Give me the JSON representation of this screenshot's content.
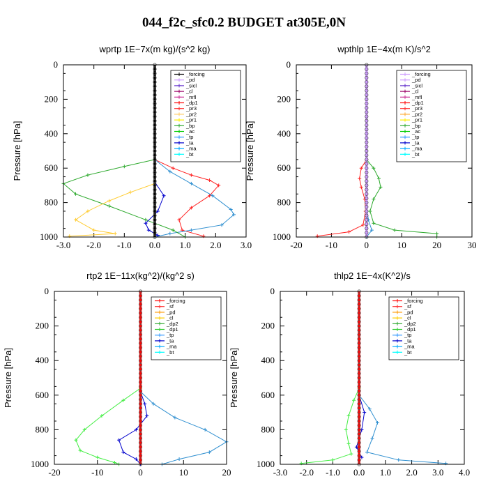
{
  "title": "044_f2c_sfc0.2  BUDGET at305E,0N",
  "chart_data": [
    {
      "type": "line",
      "title": "wprtp  1E−7x(m kg)/(s^2 kg)",
      "ylabel": "Pressure [hPa]",
      "xlim": [
        -3.0,
        3.0
      ],
      "ylim": [
        1000,
        0
      ],
      "xticks": [
        "-3.0",
        "-2.0",
        "-1.0",
        "0.0",
        "1.0",
        "2.0",
        "3.0"
      ],
      "yticks": [
        "0",
        "200",
        "400",
        "600",
        "800",
        "1000"
      ],
      "legend": [
        "_forcing",
        "_pd",
        "_sicl",
        "_cl",
        "_mfl",
        "_dp1",
        "_pr3",
        "_pr2",
        "_pr1",
        "_bp",
        "_ac",
        "_tp",
        "_ta",
        "_ma",
        "_bt"
      ],
      "legend_colors": [
        "#000000",
        "#cc99ff",
        "#6633cc",
        "#990066",
        "#cc3399",
        "#ff0000",
        "#ff3333",
        "#ffcc66",
        "#ffee00",
        "#33aa33",
        "#00cc00",
        "#3399ff",
        "#0000cc",
        "#00aaff",
        "#00ffff"
      ],
      "series": [
        {
          "name": "_dp1",
          "color": "#ff2222",
          "points": [
            [
              0.0,
              550
            ],
            [
              0.6,
              600
            ],
            [
              1.2,
              640
            ],
            [
              1.8,
              670
            ],
            [
              2.1,
              700
            ],
            [
              1.8,
              760
            ],
            [
              1.2,
              830
            ],
            [
              0.8,
              900
            ],
            [
              0.9,
              960
            ],
            [
              1.6,
              995
            ]
          ]
        },
        {
          "name": "_tp",
          "color": "#2f8fd0",
          "points": [
            [
              0.0,
              550
            ],
            [
              0.5,
              620
            ],
            [
              1.2,
              690
            ],
            [
              1.9,
              760
            ],
            [
              2.5,
              840
            ],
            [
              2.6,
              870
            ],
            [
              2.2,
              930
            ],
            [
              1.2,
              960
            ],
            [
              0.5,
              980
            ],
            [
              0.0,
              1000
            ]
          ]
        },
        {
          "name": "_bp",
          "color": "#2faa2f",
          "points": [
            [
              0.0,
              550
            ],
            [
              -1.0,
              590
            ],
            [
              -2.2,
              640
            ],
            [
              -3.0,
              690
            ],
            [
              -2.6,
              750
            ],
            [
              -1.5,
              820
            ],
            [
              -0.3,
              900
            ],
            [
              0.6,
              960
            ],
            [
              1.0,
              1000
            ]
          ]
        },
        {
          "name": "_pr2",
          "color": "#ffcc33",
          "points": [
            [
              0.0,
              690
            ],
            [
              -0.8,
              740
            ],
            [
              -1.5,
              790
            ],
            [
              -2.2,
              850
            ],
            [
              -2.6,
              900
            ],
            [
              -2.0,
              960
            ],
            [
              -1.3,
              980
            ],
            [
              -2.8,
              995
            ]
          ]
        },
        {
          "name": "_ta",
          "color": "#0000cc",
          "points": [
            [
              0.0,
              680
            ],
            [
              0.3,
              760
            ],
            [
              0.1,
              850
            ],
            [
              -0.3,
              920
            ],
            [
              -0.2,
              960
            ],
            [
              0.1,
              990
            ]
          ]
        },
        {
          "name": "_forcing",
          "color": "#000000",
          "points": [
            [
              0.0,
              0
            ],
            [
              0.0,
              1000
            ]
          ]
        }
      ]
    },
    {
      "type": "line",
      "title": "wpthlp  1E−4x(m K)/s^2",
      "ylabel": "Pressure [hPa]",
      "xlim": [
        -20,
        30
      ],
      "ylim": [
        1000,
        0
      ],
      "xticks": [
        "-20",
        "-10",
        "0",
        "10",
        "20",
        "30"
      ],
      "yticks": [
        "0",
        "200",
        "400",
        "600",
        "800",
        "1000"
      ],
      "legend": [
        "_forcing",
        "_pd",
        "_sicl",
        "_cl",
        "_mfl",
        "_dp1",
        "_pr3",
        "_pr2",
        "_pr1",
        "_bp",
        "_ac",
        "_tp",
        "_ta",
        "_ma",
        "_bt"
      ],
      "legend_colors": [
        "#cc99ff",
        "#cc99ff",
        "#6633cc",
        "#990066",
        "#cc3399",
        "#ff0000",
        "#ff3333",
        "#ffaa33",
        "#ffee00",
        "#33aa33",
        "#00cc00",
        "#3399ff",
        "#0000cc",
        "#00aaff",
        "#00ffff"
      ],
      "series": [
        {
          "name": "_bp",
          "color": "#2faa2f",
          "points": [
            [
              0,
              550
            ],
            [
              2,
              600
            ],
            [
              3.5,
              660
            ],
            [
              4,
              710
            ],
            [
              2,
              780
            ],
            [
              1,
              850
            ],
            [
              2,
              920
            ],
            [
              8,
              960
            ],
            [
              20,
              980
            ],
            [
              20,
              1000
            ]
          ]
        },
        {
          "name": "_dp1",
          "color": "#ff2222",
          "points": [
            [
              0,
              550
            ],
            [
              -1.5,
              600
            ],
            [
              -2,
              660
            ],
            [
              -1.5,
              710
            ],
            [
              -0.5,
              780
            ],
            [
              -0.3,
              850
            ],
            [
              -1,
              930
            ],
            [
              -5,
              970
            ],
            [
              -14,
              995
            ]
          ]
        },
        {
          "name": "_tp",
          "color": "#2f8fd0",
          "points": [
            [
              0,
              800
            ],
            [
              0.5,
              900
            ],
            [
              1.5,
              960
            ],
            [
              0,
              1000
            ]
          ]
        },
        {
          "name": "_forcing",
          "color": "#cc99ff",
          "points": [
            [
              0,
              0
            ],
            [
              0,
              1000
            ]
          ]
        }
      ]
    },
    {
      "type": "line",
      "title": "rtp2  1E−11x(kg^2)/(kg^2 s)",
      "ylabel": "Pressure [hPa]",
      "xlim": [
        -20,
        20
      ],
      "ylim": [
        1000,
        0
      ],
      "xticks": [
        "-20",
        "-10",
        "0",
        "10",
        "20"
      ],
      "yticks": [
        "0",
        "200",
        "400",
        "600",
        "800",
        "1000"
      ],
      "legend": [
        "_forcing",
        "_sf",
        "_pd",
        "_cl",
        "_dp2",
        "_dp1",
        "_tp",
        "_ta",
        "_ma",
        "_bt"
      ],
      "legend_colors": [
        "#ff0000",
        "#ff3333",
        "#ff9900",
        "#ffcc00",
        "#33aa33",
        "#33cc33",
        "#3399ff",
        "#0000cc",
        "#00aaff",
        "#00ffff"
      ],
      "series": [
        {
          "name": "_dp1",
          "color": "#44ee44",
          "points": [
            [
              0,
              560
            ],
            [
              -4,
              630
            ],
            [
              -9,
              720
            ],
            [
              -13,
              800
            ],
            [
              -15,
              860
            ],
            [
              -14,
              920
            ],
            [
              -10,
              960
            ],
            [
              -6,
              990
            ],
            [
              -5,
              1000
            ]
          ]
        },
        {
          "name": "_tp",
          "color": "#2f8fd0",
          "points": [
            [
              0,
              580
            ],
            [
              3,
              650
            ],
            [
              8,
              730
            ],
            [
              15,
              800
            ],
            [
              20,
              870
            ],
            [
              16,
              930
            ],
            [
              9,
              970
            ],
            [
              5,
              1000
            ]
          ]
        },
        {
          "name": "_ta",
          "color": "#0000cc",
          "points": [
            [
              0,
              580
            ],
            [
              1,
              650
            ],
            [
              1.5,
              720
            ],
            [
              -1,
              800
            ],
            [
              -5,
              860
            ],
            [
              -4,
              930
            ],
            [
              -1,
              970
            ],
            [
              0,
              1000
            ]
          ]
        },
        {
          "name": "_forcing",
          "color": "#ff0000",
          "points": [
            [
              0,
              0
            ],
            [
              0,
              1000
            ]
          ]
        }
      ]
    },
    {
      "type": "line",
      "title": "thlp2  1E−4x(K^2)/s",
      "ylabel": "Pressure [hPa]",
      "xlim": [
        -3.0,
        4.0
      ],
      "ylim": [
        1000,
        0
      ],
      "xticks": [
        "-3.0",
        "-2.0",
        "-1.0",
        "0.0",
        "1.0",
        "2.0",
        "3.0",
        "4.0"
      ],
      "yticks": [
        "0",
        "200",
        "400",
        "600",
        "800",
        "1000"
      ],
      "legend": [
        "_forcing",
        "_sf",
        "_pd",
        "_cl",
        "_dp2",
        "_dp1",
        "_tp",
        "_ta",
        "_ma",
        "_bt"
      ],
      "legend_colors": [
        "#ff0000",
        "#ff3333",
        "#ff9900",
        "#ffcc00",
        "#33aa33",
        "#33cc33",
        "#3399ff",
        "#0000cc",
        "#00aaff",
        "#00ffff"
      ],
      "series": [
        {
          "name": "_dp1",
          "color": "#44ee44",
          "points": [
            [
              0.0,
              560
            ],
            [
              -0.2,
              630
            ],
            [
              -0.4,
              720
            ],
            [
              -0.5,
              800
            ],
            [
              -0.4,
              880
            ],
            [
              -0.3,
              940
            ],
            [
              -1.0,
              975
            ],
            [
              -2.2,
              995
            ]
          ]
        },
        {
          "name": "_tp",
          "color": "#2f8fd0",
          "points": [
            [
              0.0,
              600
            ],
            [
              0.4,
              680
            ],
            [
              0.7,
              760
            ],
            [
              0.5,
              850
            ],
            [
              0.3,
              930
            ],
            [
              1.5,
              975
            ],
            [
              3.3,
              995
            ]
          ]
        },
        {
          "name": "_ta",
          "color": "#0000cc",
          "points": [
            [
              0.0,
              600
            ],
            [
              0.2,
              700
            ],
            [
              0.1,
              800
            ],
            [
              -0.1,
              900
            ],
            [
              0.1,
              960
            ]
          ]
        },
        {
          "name": "_forcing",
          "color": "#ff0000",
          "points": [
            [
              0.0,
              0
            ],
            [
              0.0,
              1000
            ]
          ]
        }
      ]
    }
  ]
}
